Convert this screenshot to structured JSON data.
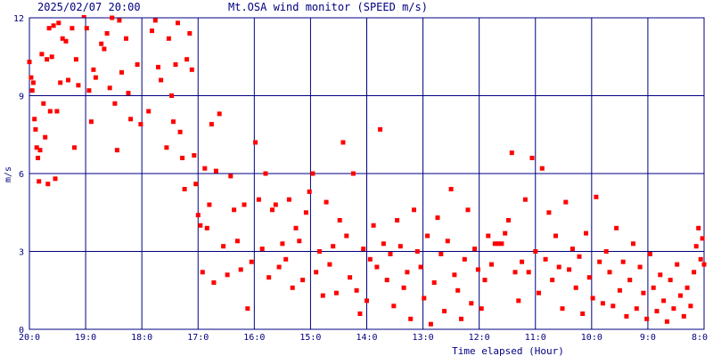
{
  "chart_data": {
    "type": "scatter",
    "timestamp": "2025/02/07 20:00",
    "title": "Mt.OSA wind monitor (SPEED m/s)",
    "xlabel": "Time elapsed (Hour)",
    "ylabel": "m/s",
    "x_tick_labels": [
      "20:0",
      "19:0",
      "18:0",
      "17:0",
      "16:0",
      "15:0",
      "14:0",
      "13:0",
      "12:0",
      "11:0",
      "10:0",
      "9:0",
      "8:0"
    ],
    "y_tick_labels": [
      "0",
      "3",
      "6",
      "9",
      "12"
    ],
    "x_unit": "hours elapsed since 20:00",
    "xlim": [
      0,
      12
    ],
    "ylim": [
      0,
      12
    ],
    "grid": true,
    "colors": {
      "frame": "#000080",
      "grid": "#000080",
      "points": "#ff0000",
      "text": "#000080"
    },
    "series": [
      {
        "values": [
          [
            0.0,
            10.3
          ],
          [
            0.03,
            9.7
          ],
          [
            0.05,
            9.2
          ],
          [
            0.07,
            9.5
          ],
          [
            0.09,
            8.1
          ],
          [
            0.11,
            7.7
          ],
          [
            0.13,
            7.0
          ],
          [
            0.15,
            6.6
          ],
          [
            0.17,
            5.7
          ],
          [
            0.19,
            6.9
          ],
          [
            0.22,
            10.6
          ],
          [
            0.25,
            8.7
          ],
          [
            0.28,
            7.4
          ],
          [
            0.31,
            10.4
          ],
          [
            0.33,
            5.6
          ],
          [
            0.35,
            11.6
          ],
          [
            0.37,
            8.4
          ],
          [
            0.4,
            10.5
          ],
          [
            0.43,
            11.7
          ],
          [
            0.46,
            5.8
          ],
          [
            0.49,
            8.4
          ],
          [
            0.52,
            11.8
          ],
          [
            0.55,
            9.5
          ],
          [
            0.59,
            11.2
          ],
          [
            0.62,
            12.4
          ],
          [
            0.65,
            11.1
          ],
          [
            0.69,
            9.6
          ],
          [
            0.73,
            12.3
          ],
          [
            0.76,
            11.6
          ],
          [
            0.8,
            7.0
          ],
          [
            0.83,
            10.4
          ],
          [
            0.87,
            9.4
          ],
          [
            0.92,
            12.5
          ],
          [
            0.97,
            12.1
          ],
          [
            1.02,
            11.6
          ],
          [
            1.06,
            9.2
          ],
          [
            1.1,
            8.0
          ],
          [
            1.14,
            10.0
          ],
          [
            1.18,
            9.7
          ],
          [
            1.23,
            12.5
          ],
          [
            1.28,
            11.0
          ],
          [
            1.33,
            10.8
          ],
          [
            1.38,
            11.4
          ],
          [
            1.43,
            9.3
          ],
          [
            1.47,
            12.0
          ],
          [
            1.52,
            8.7
          ],
          [
            1.56,
            6.9
          ],
          [
            1.6,
            11.9
          ],
          [
            1.64,
            9.9
          ],
          [
            1.68,
            12.2
          ],
          [
            1.72,
            11.2
          ],
          [
            1.76,
            9.1
          ],
          [
            1.8,
            8.1
          ],
          [
            1.86,
            12.5
          ],
          [
            1.92,
            10.2
          ],
          [
            1.98,
            7.9
          ],
          [
            2.05,
            12.3
          ],
          [
            2.12,
            8.4
          ],
          [
            2.18,
            11.5
          ],
          [
            2.24,
            11.9
          ],
          [
            2.29,
            10.1
          ],
          [
            2.34,
            9.6
          ],
          [
            2.4,
            12.5
          ],
          [
            2.44,
            7.0
          ],
          [
            2.48,
            11.2
          ],
          [
            2.53,
            9.0
          ],
          [
            2.56,
            8.0
          ],
          [
            2.6,
            10.2
          ],
          [
            2.64,
            11.8
          ],
          [
            2.68,
            7.6
          ],
          [
            2.72,
            6.6
          ],
          [
            2.76,
            5.4
          ],
          [
            2.8,
            10.4
          ],
          [
            2.85,
            11.4
          ],
          [
            2.89,
            10.0
          ],
          [
            2.93,
            6.7
          ],
          [
            2.96,
            5.6
          ],
          [
            3.0,
            4.4
          ],
          [
            3.04,
            4.0
          ],
          [
            3.08,
            2.2
          ],
          [
            3.12,
            6.2
          ],
          [
            3.16,
            3.9
          ],
          [
            3.2,
            4.8
          ],
          [
            3.24,
            7.9
          ],
          [
            3.28,
            1.8
          ],
          [
            3.32,
            6.1
          ],
          [
            3.38,
            8.3
          ],
          [
            3.45,
            3.2
          ],
          [
            3.52,
            2.1
          ],
          [
            3.58,
            5.9
          ],
          [
            3.64,
            4.6
          ],
          [
            3.7,
            3.4
          ],
          [
            3.76,
            2.3
          ],
          [
            3.82,
            4.8
          ],
          [
            3.88,
            0.8
          ],
          [
            3.95,
            2.6
          ],
          [
            4.02,
            7.2
          ],
          [
            4.08,
            5.0
          ],
          [
            4.14,
            3.1
          ],
          [
            4.2,
            6.0
          ],
          [
            4.26,
            2.0
          ],
          [
            4.32,
            4.6
          ],
          [
            4.38,
            4.8
          ],
          [
            4.44,
            2.4
          ],
          [
            4.5,
            3.3
          ],
          [
            4.56,
            2.7
          ],
          [
            4.62,
            5.0
          ],
          [
            4.68,
            1.6
          ],
          [
            4.74,
            3.9
          ],
          [
            4.8,
            3.4
          ],
          [
            4.86,
            1.9
          ],
          [
            4.92,
            4.5
          ],
          [
            4.98,
            5.3
          ],
          [
            5.04,
            6.0
          ],
          [
            5.1,
            2.2
          ],
          [
            5.16,
            3.0
          ],
          [
            5.22,
            1.3
          ],
          [
            5.28,
            4.9
          ],
          [
            5.34,
            2.5
          ],
          [
            5.4,
            3.2
          ],
          [
            5.46,
            1.4
          ],
          [
            5.52,
            4.2
          ],
          [
            5.58,
            7.2
          ],
          [
            5.64,
            3.6
          ],
          [
            5.7,
            2.0
          ],
          [
            5.76,
            6.0
          ],
          [
            5.82,
            1.5
          ],
          [
            5.88,
            0.6
          ],
          [
            5.94,
            3.1
          ],
          [
            6.0,
            1.1
          ],
          [
            6.06,
            2.7
          ],
          [
            6.12,
            4.0
          ],
          [
            6.18,
            2.4
          ],
          [
            6.24,
            7.7
          ],
          [
            6.3,
            3.3
          ],
          [
            6.36,
            1.9
          ],
          [
            6.42,
            2.9
          ],
          [
            6.48,
            0.9
          ],
          [
            6.54,
            4.2
          ],
          [
            6.6,
            3.2
          ],
          [
            6.66,
            1.6
          ],
          [
            6.72,
            2.2
          ],
          [
            6.78,
            0.4
          ],
          [
            6.84,
            4.6
          ],
          [
            6.9,
            3.0
          ],
          [
            6.96,
            2.4
          ],
          [
            7.02,
            1.2
          ],
          [
            7.08,
            3.6
          ],
          [
            7.14,
            0.2
          ],
          [
            7.2,
            1.8
          ],
          [
            7.26,
            4.3
          ],
          [
            7.32,
            2.9
          ],
          [
            7.38,
            0.7
          ],
          [
            7.44,
            3.4
          ],
          [
            7.5,
            5.4
          ],
          [
            7.56,
            2.1
          ],
          [
            7.62,
            1.5
          ],
          [
            7.68,
            0.4
          ],
          [
            7.74,
            2.7
          ],
          [
            7.8,
            4.6
          ],
          [
            7.86,
            1.0
          ],
          [
            7.92,
            3.1
          ],
          [
            7.98,
            2.3
          ],
          [
            8.04,
            0.8
          ],
          [
            8.1,
            1.9
          ],
          [
            8.16,
            3.6
          ],
          [
            8.22,
            2.5
          ],
          [
            8.28,
            3.3
          ],
          [
            8.34,
            3.3
          ],
          [
            8.4,
            3.3
          ],
          [
            8.46,
            3.7
          ],
          [
            8.52,
            4.2
          ],
          [
            8.58,
            6.8
          ],
          [
            8.64,
            2.2
          ],
          [
            8.7,
            1.1
          ],
          [
            8.76,
            2.6
          ],
          [
            8.82,
            5.0
          ],
          [
            8.88,
            2.2
          ],
          [
            8.94,
            6.6
          ],
          [
            9.0,
            3.0
          ],
          [
            9.06,
            1.4
          ],
          [
            9.12,
            6.2
          ],
          [
            9.18,
            2.7
          ],
          [
            9.24,
            4.5
          ],
          [
            9.3,
            1.9
          ],
          [
            9.36,
            3.6
          ],
          [
            9.42,
            2.4
          ],
          [
            9.48,
            0.8
          ],
          [
            9.54,
            4.9
          ],
          [
            9.6,
            2.3
          ],
          [
            9.66,
            3.1
          ],
          [
            9.72,
            1.6
          ],
          [
            9.78,
            2.8
          ],
          [
            9.84,
            0.6
          ],
          [
            9.9,
            3.7
          ],
          [
            9.96,
            2.0
          ],
          [
            10.02,
            1.2
          ],
          [
            10.08,
            5.1
          ],
          [
            10.14,
            2.6
          ],
          [
            10.2,
            1.0
          ],
          [
            10.26,
            3.0
          ],
          [
            10.32,
            2.2
          ],
          [
            10.38,
            0.9
          ],
          [
            10.44,
            3.9
          ],
          [
            10.5,
            1.5
          ],
          [
            10.56,
            2.6
          ],
          [
            10.62,
            0.5
          ],
          [
            10.68,
            1.9
          ],
          [
            10.74,
            3.3
          ],
          [
            10.8,
            0.8
          ],
          [
            10.86,
            2.4
          ],
          [
            10.92,
            1.4
          ],
          [
            10.98,
            0.4
          ],
          [
            11.04,
            2.9
          ],
          [
            11.1,
            1.6
          ],
          [
            11.16,
            0.7
          ],
          [
            11.22,
            2.1
          ],
          [
            11.28,
            1.1
          ],
          [
            11.34,
            0.3
          ],
          [
            11.4,
            1.9
          ],
          [
            11.46,
            0.8
          ],
          [
            11.52,
            2.5
          ],
          [
            11.58,
            1.3
          ],
          [
            11.64,
            0.5
          ],
          [
            11.7,
            1.6
          ],
          [
            11.76,
            0.9
          ],
          [
            11.82,
            2.2
          ],
          [
            11.86,
            3.2
          ],
          [
            11.9,
            3.9
          ],
          [
            11.94,
            2.7
          ],
          [
            11.97,
            3.5
          ],
          [
            12.0,
            2.5
          ]
        ]
      }
    ]
  }
}
